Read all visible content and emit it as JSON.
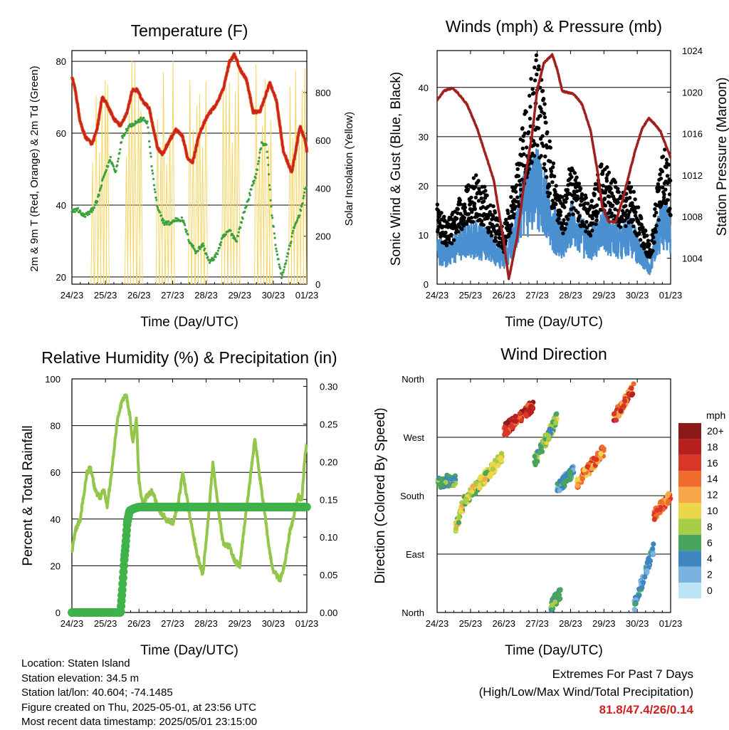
{
  "panels": {
    "temperature": {
      "title": "Temperature (F)",
      "ylabel_left": "2m & 9m T (Red, Orange) & 2m Td (Green)",
      "ylabel_right": "Solar Insolation (Yellow)",
      "xlabel": "Time (Day/UTC)"
    },
    "winds": {
      "title": "Winds (mph) & Pressure (mb)",
      "ylabel_left": "Sonic Wind & Gust (Blue, Black)",
      "ylabel_right": "Station Pressure (Maroon)",
      "xlabel": "Time (Day/UTC)"
    },
    "humidity": {
      "title": "Relative Humidity (%) & Precipitation (in)",
      "ylabel_left": "Percent & Total Rainfall",
      "xlabel": "Time (Day/UTC)"
    },
    "direction": {
      "title": "Wind Direction",
      "ylabel_left": "Direction (Colored By Speed)",
      "xlabel": "Time (Day/UTC)",
      "legend_title": "mph"
    }
  },
  "chart_data": [
    {
      "id": "temperature",
      "type": "line",
      "x_ticks": [
        "24/23",
        "25/23",
        "26/23",
        "27/23",
        "28/23",
        "29/23",
        "30/23",
        "01/23"
      ],
      "xlim": [
        0,
        7
      ],
      "ylim": [
        18,
        83
      ],
      "y_ticks": [
        20,
        40,
        60,
        80
      ],
      "y2lim": [
        0,
        975
      ],
      "y2_ticks": [
        0,
        200,
        400,
        600,
        800
      ],
      "series": [
        {
          "name": "2m T",
          "color": "#cc2222",
          "x": [
            0,
            0.1,
            0.25,
            0.4,
            0.6,
            0.75,
            0.9,
            1.05,
            1.25,
            1.45,
            1.65,
            1.8,
            1.95,
            2.1,
            2.3,
            2.55,
            2.7,
            2.85,
            3.1,
            3.3,
            3.45,
            3.6,
            3.8,
            4.05,
            4.3,
            4.5,
            4.7,
            4.85,
            5.0,
            5.2,
            5.4,
            5.6,
            5.75,
            5.9,
            6.1,
            6.3,
            6.55,
            6.8,
            6.95,
            7.0
          ],
          "values": [
            76,
            72,
            63,
            59,
            57,
            61,
            70,
            68,
            64,
            62,
            66,
            72,
            72,
            69,
            67,
            56,
            54,
            57,
            61,
            59,
            53,
            52,
            60,
            65,
            68,
            72,
            80,
            82,
            78,
            75,
            66,
            66,
            70,
            74,
            69,
            55,
            49,
            62,
            58,
            55
          ]
        },
        {
          "name": "2m Td",
          "color": "#3ca03c",
          "x": [
            0,
            0.15,
            0.35,
            0.55,
            0.75,
            0.95,
            1.15,
            1.3,
            1.5,
            1.7,
            1.9,
            2.1,
            2.25,
            2.4,
            2.55,
            2.75,
            2.95,
            3.1,
            3.3,
            3.5,
            3.7,
            3.9,
            4.1,
            4.3,
            4.5,
            4.7,
            4.9,
            5.1,
            5.3,
            5.5,
            5.65,
            5.8,
            5.95,
            6.1,
            6.25,
            6.4,
            6.6,
            6.8,
            6.95,
            7.0
          ],
          "values": [
            38,
            39,
            37,
            38,
            41,
            48,
            53,
            49,
            59,
            62,
            63,
            64,
            63,
            49,
            39,
            35,
            35,
            36,
            36,
            30,
            27,
            29,
            24,
            26,
            31,
            33,
            30,
            37,
            43,
            49,
            57,
            57,
            38,
            27,
            20,
            25,
            33,
            38,
            44,
            45
          ]
        },
        {
          "name": "Solar Insolation",
          "color": "#f5d665",
          "axis": "right",
          "peaks": [
            0.82,
            1.8,
            2.75,
            3.72,
            4.7,
            5.68,
            6.68
          ]
        }
      ]
    },
    {
      "id": "winds",
      "type": "line",
      "x_ticks": [
        "24/23",
        "25/23",
        "26/23",
        "27/23",
        "28/23",
        "29/23",
        "30/23",
        "01/23"
      ],
      "xlim": [
        0,
        7
      ],
      "ylim": [
        0,
        47.5
      ],
      "y_ticks": [
        0,
        10,
        20,
        30,
        40
      ],
      "y2lim": [
        1001.5,
        1024
      ],
      "y2_ticks": [
        1004,
        1008,
        1012,
        1016,
        1020,
        1024
      ],
      "series": [
        {
          "name": "Sonic Wind",
          "color": "#4a90d0",
          "x": [
            0,
            0.3,
            0.6,
            0.9,
            1.2,
            1.5,
            1.8,
            2.0,
            2.2,
            2.4,
            2.6,
            2.8,
            3.0,
            3.2,
            3.4,
            3.6,
            3.8,
            4.0,
            4.3,
            4.6,
            4.9,
            5.2,
            5.5,
            5.8,
            6.1,
            6.4,
            6.6,
            6.8,
            7.0
          ],
          "values": [
            7,
            6,
            8,
            9,
            9,
            8,
            6,
            5,
            8,
            12,
            16,
            18,
            20,
            17,
            13,
            10,
            9,
            12,
            10,
            8,
            11,
            10,
            9,
            10,
            6,
            3,
            10,
            13,
            11
          ]
        },
        {
          "name": "Gust",
          "color": "#000000",
          "x": [
            0,
            0.3,
            0.6,
            0.9,
            1.2,
            1.5,
            1.8,
            2.0,
            2.2,
            2.4,
            2.6,
            2.8,
            3.0,
            3.2,
            3.4,
            3.6,
            3.8,
            4.0,
            4.3,
            4.6,
            4.9,
            5.2,
            5.5,
            5.8,
            6.1,
            6.4,
            6.6,
            6.8,
            7.0
          ],
          "values": [
            13,
            10,
            13,
            16,
            18,
            15,
            11,
            9,
            14,
            20,
            27,
            33,
            38,
            30,
            22,
            16,
            14,
            20,
            16,
            13,
            20,
            18,
            15,
            17,
            11,
            6,
            16,
            22,
            18
          ]
        },
        {
          "name": "Station Pressure",
          "color": "#a02020",
          "axis": "right",
          "x": [
            0,
            0.2,
            0.45,
            0.6,
            0.9,
            1.2,
            1.45,
            1.7,
            1.95,
            2.0,
            2.15,
            2.4,
            2.6,
            2.85,
            3.0,
            3.2,
            3.45,
            3.6,
            3.75,
            4.1,
            4.35,
            4.6,
            4.8,
            4.95,
            5.15,
            5.35,
            5.55,
            5.75,
            5.95,
            6.15,
            6.35,
            6.5,
            6.7,
            6.9,
            7.0
          ],
          "values": [
            1019.2,
            1020.1,
            1020.4,
            1020.0,
            1018.8,
            1016.5,
            1014.0,
            1011.5,
            1006.5,
            1005.5,
            1002.0,
            1006.0,
            1011.0,
            1016.0,
            1020.2,
            1022.8,
            1023.6,
            1022.2,
            1020.1,
            1019.8,
            1018.8,
            1016.3,
            1012.5,
            1009.0,
            1007.5,
            1007.5,
            1009.5,
            1012.0,
            1014.5,
            1016.5,
            1017.5,
            1017.0,
            1016.2,
            1014.5,
            1013.7
          ]
        }
      ]
    },
    {
      "id": "humidity",
      "type": "line",
      "x_ticks": [
        "24/23",
        "25/23",
        "26/23",
        "27/23",
        "28/23",
        "29/23",
        "30/23",
        "01/23"
      ],
      "xlim": [
        0,
        7
      ],
      "ylim": [
        0,
        100
      ],
      "y_ticks": [
        0,
        20,
        40,
        60,
        80,
        100
      ],
      "y2lim": [
        0,
        0.31
      ],
      "y2_ticks": [
        "0.00",
        "0.05",
        "0.10",
        "0.15",
        "0.20",
        "0.25",
        "0.30"
      ],
      "series": [
        {
          "name": "Relative Humidity",
          "color": "#93c64a",
          "x": [
            0,
            0.1,
            0.25,
            0.45,
            0.55,
            0.7,
            0.85,
            0.95,
            1.05,
            1.2,
            1.35,
            1.5,
            1.62,
            1.72,
            1.82,
            1.92,
            2.0,
            2.1,
            2.25,
            2.4,
            2.6,
            2.8,
            3.0,
            3.15,
            3.3,
            3.45,
            3.6,
            3.75,
            3.9,
            4.05,
            4.2,
            4.35,
            4.5,
            4.7,
            4.85,
            5.0,
            5.15,
            5.3,
            5.45,
            5.6,
            5.75,
            5.9,
            6.0,
            6.2,
            6.35,
            6.5,
            6.6,
            6.75,
            6.85,
            6.95,
            7.0
          ],
          "values": [
            26,
            35,
            40,
            60,
            62,
            52,
            49,
            53,
            45,
            62,
            82,
            91,
            93,
            85,
            72,
            83,
            56,
            47,
            50,
            52,
            44,
            40,
            38,
            45,
            60,
            47,
            34,
            24,
            16,
            38,
            64,
            46,
            30,
            28,
            22,
            20,
            38,
            56,
            74,
            58,
            42,
            25,
            18,
            14,
            21,
            35,
            40,
            50,
            48,
            68,
            72
          ]
        },
        {
          "name": "Total Precipitation",
          "color": "#3fb24a",
          "axis": "right",
          "x": [
            0,
            1.45,
            1.5,
            1.53,
            1.56,
            1.6,
            1.65,
            1.72,
            1.85,
            2.0,
            7.0
          ],
          "values": [
            0,
            0,
            0.03,
            0.05,
            0.07,
            0.09,
            0.12,
            0.135,
            0.138,
            0.14,
            0.14
          ]
        }
      ]
    },
    {
      "id": "direction",
      "type": "scatter",
      "x_ticks": [
        "24/23",
        "25/23",
        "26/23",
        "27/23",
        "28/23",
        "29/23",
        "30/23",
        "01/23"
      ],
      "xlim": [
        0,
        7
      ],
      "y_ticks": [
        "North",
        "East",
        "South",
        "West",
        "North"
      ],
      "ylim": [
        0,
        360
      ],
      "colorbar": {
        "labels": [
          "20+",
          "18",
          "16",
          "14",
          "12",
          "10",
          "8",
          "6",
          "4",
          "2",
          "0"
        ],
        "colors": [
          "#8b1a1a",
          "#b8201f",
          "#d9362a",
          "#ef6b2e",
          "#f8a748",
          "#eed64a",
          "#a7cc45",
          "#4aa55c",
          "#3d86c0",
          "#7ab3e0",
          "#bde3f6"
        ]
      },
      "clusters": [
        {
          "x0": 0.0,
          "x1": 0.55,
          "dir": [
            200,
            205
          ],
          "speed": [
            4,
            8
          ]
        },
        {
          "x0": 0.55,
          "x1": 0.8,
          "dir": [
            130,
            170
          ],
          "speed": [
            6,
            12
          ]
        },
        {
          "x0": 0.8,
          "x1": 1.95,
          "dir": [
            170,
            240
          ],
          "speed": [
            6,
            12
          ]
        },
        {
          "x0": 2.0,
          "x1": 2.9,
          "dir": [
            280,
            320
          ],
          "speed": [
            14,
            20
          ]
        },
        {
          "x0": 2.9,
          "x1": 3.6,
          "dir": [
            230,
            300
          ],
          "speed": [
            4,
            10
          ]
        },
        {
          "x0": 3.4,
          "x1": 3.7,
          "dir": [
            10,
            30
          ],
          "speed": [
            4,
            8
          ]
        },
        {
          "x0": 3.6,
          "x1": 4.1,
          "dir": [
            190,
            220
          ],
          "speed": [
            2,
            6
          ]
        },
        {
          "x0": 4.2,
          "x1": 5.0,
          "dir": [
            200,
            250
          ],
          "speed": [
            10,
            16
          ]
        },
        {
          "x0": 5.3,
          "x1": 5.9,
          "dir": [
            300,
            345
          ],
          "speed": [
            12,
            18
          ]
        },
        {
          "x0": 5.9,
          "x1": 6.5,
          "dir": [
            10,
            100
          ],
          "speed": [
            2,
            6
          ]
        },
        {
          "x0": 6.5,
          "x1": 7.0,
          "dir": [
            150,
            180
          ],
          "speed": [
            12,
            16
          ]
        }
      ]
    }
  ],
  "info": {
    "location": "Location: Staten Island",
    "elevation": "Station elevation: 34.5 m",
    "latlon": "Station lat/lon: 40.604; -74.1485",
    "created": "Figure created on Thu, 2025-05-01, at 23:56 UTC",
    "recent": "Most recent data timestamp: 2025/05/01 23:15:00"
  },
  "extremes": {
    "title": "Extremes For Past 7 Days",
    "subtitle": "(High/Low/Max Wind/Total Precipitation)",
    "values": "81.8/47.4/26/0.14"
  }
}
